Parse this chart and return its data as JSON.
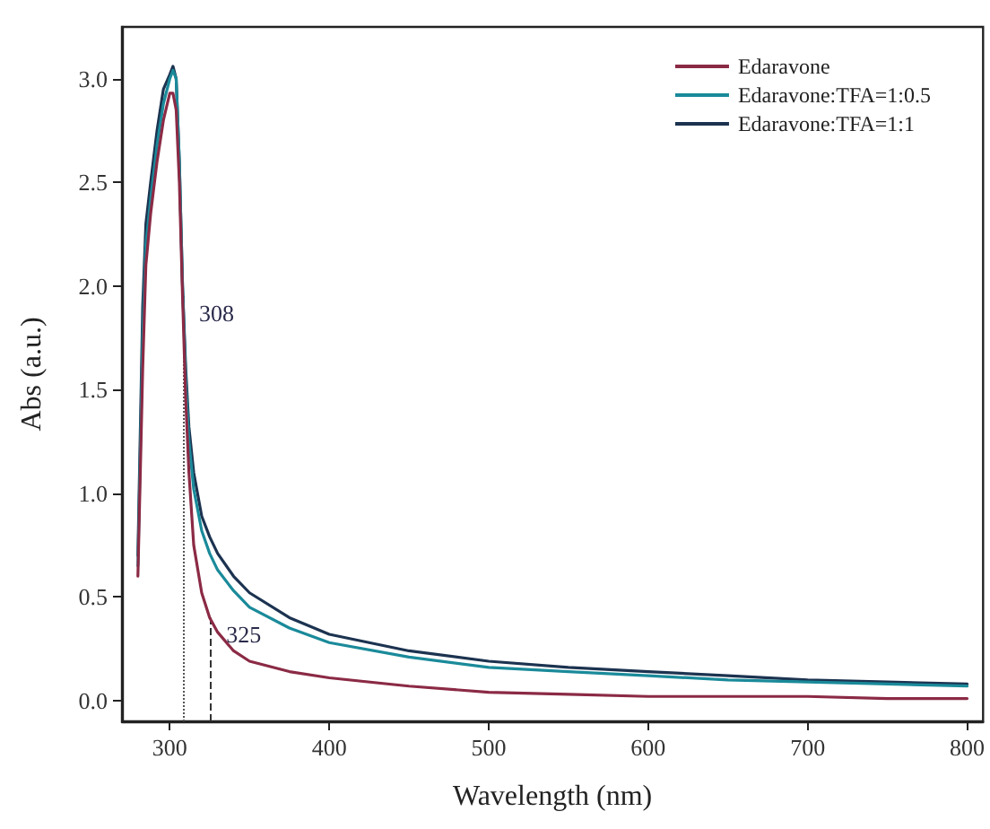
{
  "chart_data": {
    "type": "line",
    "xlabel": "Wavelength (nm)",
    "ylabel": "Abs (a.u.)",
    "x": [
      280,
      283,
      285,
      288,
      292,
      296,
      300,
      302,
      304,
      306,
      308,
      310,
      312,
      315,
      320,
      325,
      330,
      340,
      350,
      375,
      400,
      450,
      500,
      550,
      600,
      650,
      700,
      750,
      800
    ],
    "series": [
      {
        "name": "Edaravone",
        "color": "#8b2a45",
        "values": [
          0.6,
          1.6,
          2.1,
          2.35,
          2.6,
          2.8,
          2.93,
          2.93,
          2.85,
          2.5,
          1.95,
          1.45,
          1.1,
          0.75,
          0.52,
          0.4,
          0.33,
          0.24,
          0.19,
          0.14,
          0.11,
          0.07,
          0.04,
          0.03,
          0.02,
          0.02,
          0.02,
          0.01,
          0.01
        ]
      },
      {
        "name": "Edaravone:TFA=1:0.5",
        "color": "#1a8a9a",
        "values": [
          0.65,
          1.75,
          2.2,
          2.42,
          2.68,
          2.88,
          3.0,
          3.04,
          3.0,
          2.6,
          2.0,
          1.55,
          1.25,
          1.02,
          0.82,
          0.71,
          0.63,
          0.53,
          0.45,
          0.35,
          0.28,
          0.21,
          0.16,
          0.14,
          0.12,
          0.1,
          0.09,
          0.08,
          0.07
        ]
      },
      {
        "name": "Edaravone:TFA=1:1",
        "color": "#1c3350",
        "values": [
          0.7,
          1.9,
          2.3,
          2.5,
          2.75,
          2.95,
          3.02,
          3.06,
          3.0,
          2.6,
          2.0,
          1.6,
          1.32,
          1.1,
          0.89,
          0.79,
          0.71,
          0.6,
          0.52,
          0.4,
          0.32,
          0.24,
          0.19,
          0.16,
          0.14,
          0.12,
          0.1,
          0.09,
          0.08
        ]
      }
    ],
    "xlim": [
      270,
      810
    ],
    "xticks": [
      300,
      400,
      500,
      600,
      700,
      800
    ],
    "ylim": [
      -0.1,
      3.25
    ],
    "yticks": [
      {
        "value": 0,
        "label": "0.0"
      },
      0.5,
      {
        "value": 1,
        "label": "1.0"
      },
      1.5,
      {
        "value": 2,
        "label": "2.0"
      },
      2.5,
      {
        "value": 3,
        "label": "3.0"
      }
    ],
    "ref_lines": [
      {
        "axis": "x",
        "value": 308,
        "label": "308",
        "line_style": "dotted",
        "color": "#555555"
      },
      {
        "axis": "x",
        "value": 325,
        "label": "325",
        "line_style": "dashed",
        "color": "#333333"
      }
    ],
    "grid": false,
    "legend": "top right",
    "marker": "none",
    "line_style": "solid"
  }
}
